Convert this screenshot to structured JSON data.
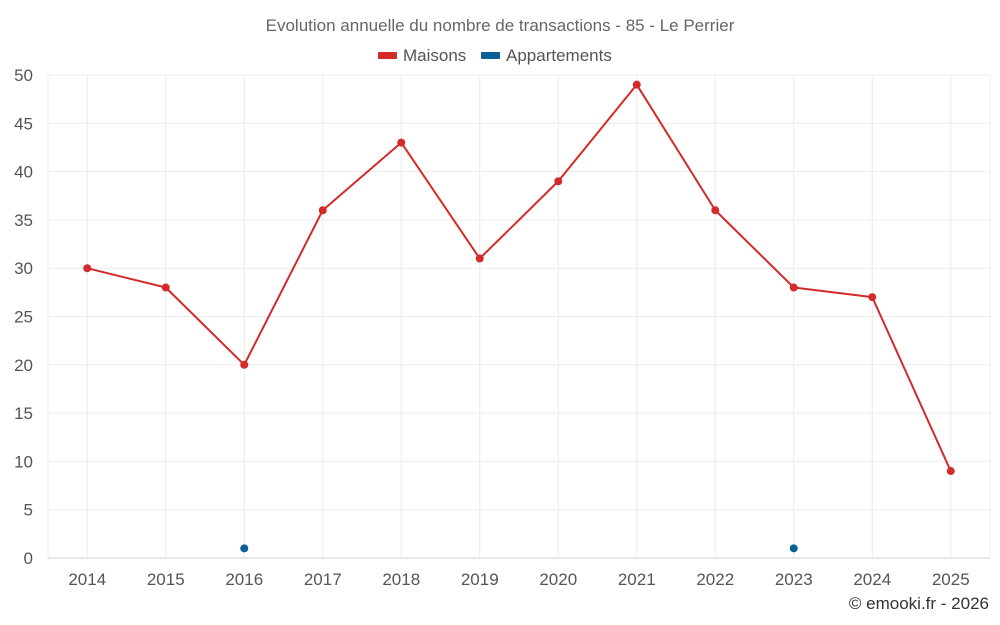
{
  "chart_data": {
    "type": "line",
    "title": "Evolution annuelle du nombre de transactions - 85 - Le Perrier",
    "categories": [
      "2014",
      "2015",
      "2016",
      "2017",
      "2018",
      "2019",
      "2020",
      "2021",
      "2022",
      "2023",
      "2024",
      "2025"
    ],
    "ylim": [
      0,
      50
    ],
    "yticks": [
      0,
      5,
      10,
      15,
      20,
      25,
      30,
      35,
      40,
      45,
      50
    ],
    "grid": true,
    "legend_position": "top-center",
    "series": [
      {
        "name": "Maisons",
        "color": "#d32a2a",
        "values": [
          30,
          28,
          20,
          36,
          43,
          31,
          39,
          49,
          36,
          28,
          27,
          9
        ]
      },
      {
        "name": "Appartements",
        "color": "#0a5f96",
        "values": [
          null,
          null,
          1,
          null,
          null,
          null,
          null,
          null,
          null,
          1,
          null,
          null
        ]
      }
    ]
  },
  "credit": "© emooki.fr - 2026"
}
